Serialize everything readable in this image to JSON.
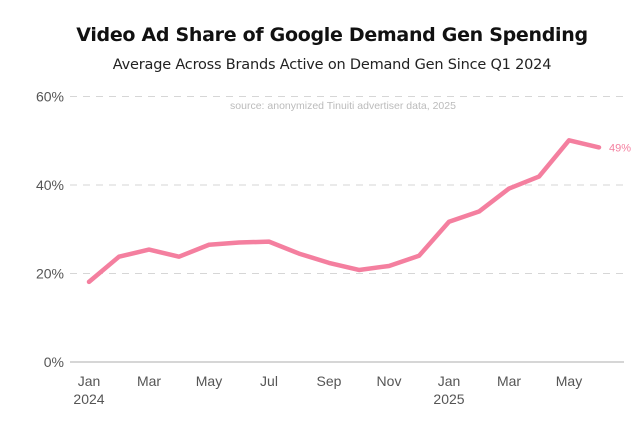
{
  "chart_data": {
    "type": "line",
    "title": "Video Ad Share of Google Demand Gen Spending",
    "subtitle": "Average Across Brands Active on Demand Gen Since Q1 2024",
    "annotation": "source: anonymized Tinuiti advertiser data, 2025",
    "xlabel": "",
    "ylabel": "",
    "ylim": [
      0,
      60
    ],
    "y_ticks": [
      0,
      20,
      40,
      60
    ],
    "y_tick_labels": [
      "0%",
      "20%",
      "40%",
      "60%"
    ],
    "grid": true,
    "x": [
      "Jan 2024",
      "Feb 2024",
      "Mar 2024",
      "Apr 2024",
      "May 2024",
      "Jun 2024",
      "Jul 2024",
      "Aug 2024",
      "Sep 2024",
      "Oct 2024",
      "Nov 2024",
      "Dec 2024",
      "Jan 2025",
      "Feb 2025",
      "Mar 2025",
      "Apr 2025",
      "May 2025",
      "Jun 2025"
    ],
    "x_ticks": [
      {
        "index": 0,
        "label": "Jan",
        "sublabel": "2024"
      },
      {
        "index": 2,
        "label": "Mar",
        "sublabel": ""
      },
      {
        "index": 4,
        "label": "May",
        "sublabel": ""
      },
      {
        "index": 6,
        "label": "Jul",
        "sublabel": ""
      },
      {
        "index": 8,
        "label": "Sep",
        "sublabel": ""
      },
      {
        "index": 10,
        "label": "Nov",
        "sublabel": ""
      },
      {
        "index": 12,
        "label": "Jan",
        "sublabel": "2025"
      },
      {
        "index": 14,
        "label": "Mar",
        "sublabel": ""
      },
      {
        "index": 16,
        "label": "May",
        "sublabel": ""
      }
    ],
    "series": [
      {
        "name": "Video Ad Share",
        "color": "#f47f9f",
        "values": [
          18.1,
          23.8,
          25.4,
          23.8,
          26.5,
          27.0,
          27.2,
          24.5,
          22.4,
          20.8,
          21.7,
          24.0,
          31.7,
          34.0,
          39.2,
          41.9,
          50.1,
          48.5
        ],
        "end_label": "49%"
      }
    ]
  }
}
